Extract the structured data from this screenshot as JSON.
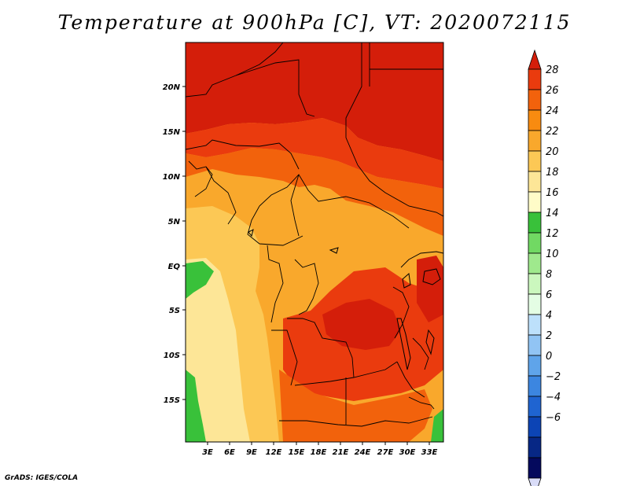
{
  "title": "Temperature at 900hPa [C], VT: 2020072115",
  "credit": "GrADS: IGES/COLA",
  "map": {
    "lat_ticks": [
      "20N",
      "15N",
      "10N",
      "5N",
      "EQ",
      "5S",
      "10S",
      "15S"
    ],
    "lon_ticks": [
      "3E",
      "6E",
      "9E",
      "12E",
      "15E",
      "18E",
      "21E",
      "24E",
      "27E",
      "30E",
      "33E"
    ]
  },
  "colorbar": {
    "labels": [
      "28",
      "26",
      "24",
      "22",
      "20",
      "18",
      "16",
      "14",
      "12",
      "10",
      "8",
      "6",
      "4",
      "2",
      "0",
      "−2",
      "−4",
      "−6"
    ],
    "colors": [
      "#d41e0a",
      "#ea3b0e",
      "#f2620c",
      "#f88b10",
      "#f9a82c",
      "#fcc855",
      "#fde697",
      "#fffcc8",
      "#39c13a",
      "#71d963",
      "#9fe98d",
      "#cbf7be",
      "#e4fde4",
      "#bde0fb",
      "#91c4f4",
      "#5fa4ea",
      "#3c86e0",
      "#1f64d1",
      "#0c44b5",
      "#072785",
      "#04095d",
      "#d9dcf8"
    ]
  }
}
